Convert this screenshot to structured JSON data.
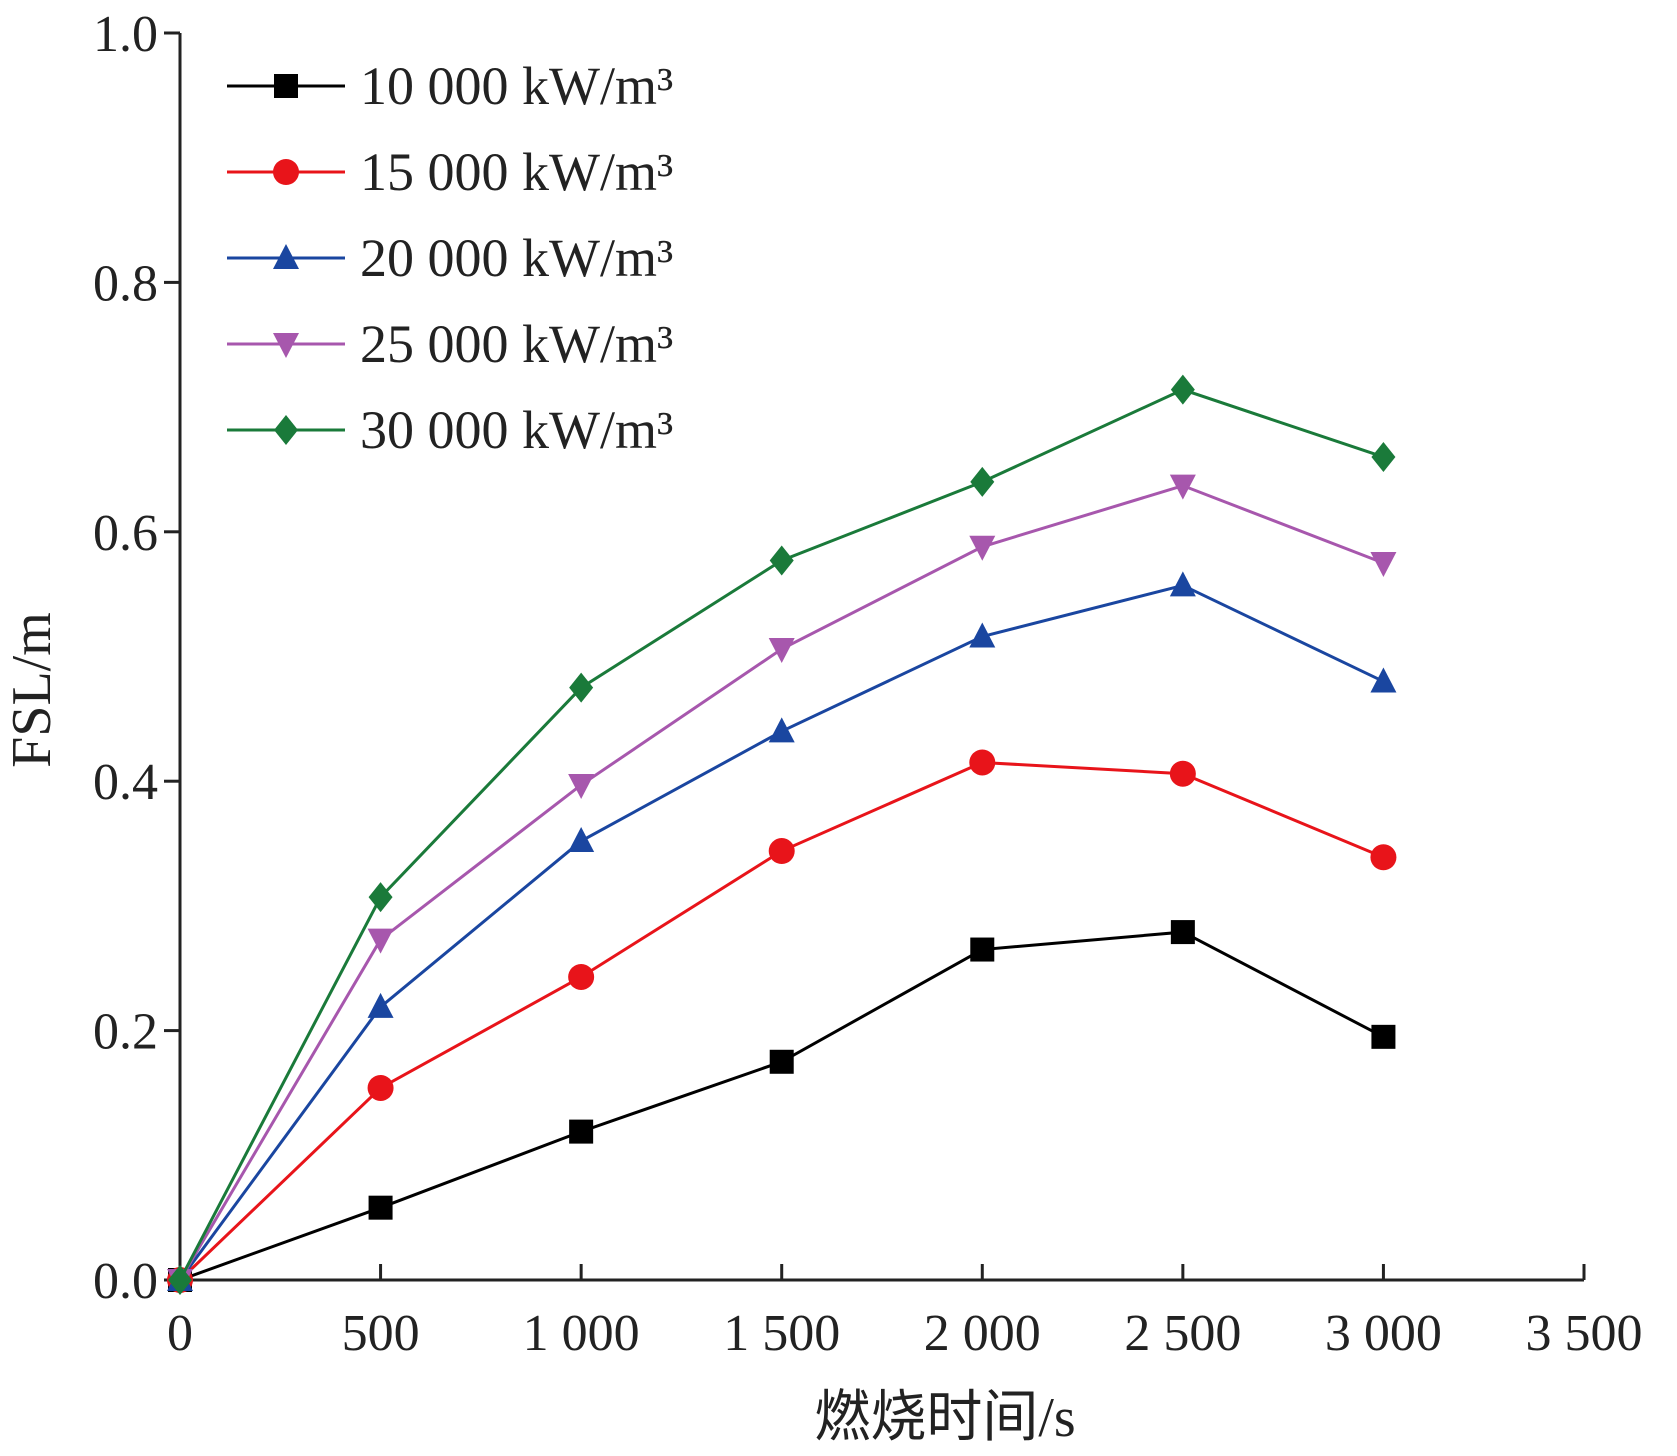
{
  "chart_data": {
    "type": "line",
    "title": "",
    "xlabel": "燃烧时间/s",
    "ylabel": "FSL/m",
    "xlim": [
      0,
      3500
    ],
    "ylim": [
      0,
      1.0
    ],
    "x_ticks": [
      0,
      500,
      1000,
      1500,
      2000,
      2500,
      3000,
      3500
    ],
    "x_tick_labels": [
      "0",
      "500",
      "1 000",
      "1 500",
      "2 000",
      "2 500",
      "3 000",
      "3 500"
    ],
    "y_ticks": [
      0,
      0.2,
      0.4,
      0.6,
      0.8,
      1.0
    ],
    "y_tick_labels": [
      "0.0",
      "0.2",
      "0.4",
      "0.6",
      "0.8",
      "1.0"
    ],
    "grid": false,
    "legend_position": "top-left",
    "x": [
      0,
      500,
      1000,
      1500,
      2000,
      2500,
      3000
    ],
    "series": [
      {
        "name": "10 000 kW/m³",
        "color": "#000000",
        "marker": "square",
        "values": [
          0,
          0.058,
          0.119,
          0.175,
          0.265,
          0.279,
          0.195
        ]
      },
      {
        "name": "15 000 kW/m³",
        "color": "#e8141a",
        "marker": "circle",
        "values": [
          0,
          0.154,
          0.243,
          0.344,
          0.415,
          0.406,
          0.339
        ]
      },
      {
        "name": "20 000 kW/m³",
        "color": "#1a46a0",
        "marker": "triangle-up",
        "values": [
          0,
          0.219,
          0.352,
          0.44,
          0.516,
          0.557,
          0.48
        ]
      },
      {
        "name": "25 000 kW/m³",
        "color": "#a757ad",
        "marker": "triangle-down",
        "values": [
          0,
          0.273,
          0.397,
          0.506,
          0.588,
          0.637,
          0.575
        ]
      },
      {
        "name": "30 000 kW/m³",
        "color": "#1a7a3a",
        "marker": "diamond",
        "values": [
          0,
          0.307,
          0.475,
          0.577,
          0.64,
          0.714,
          0.66
        ]
      }
    ]
  }
}
